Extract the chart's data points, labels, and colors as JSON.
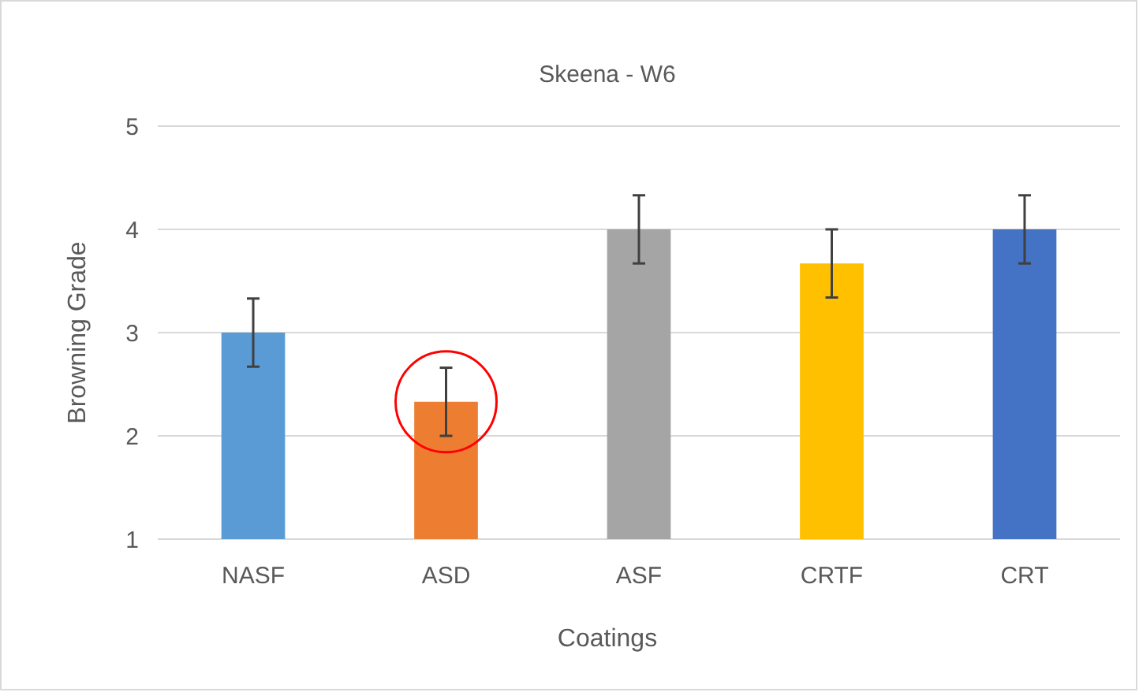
{
  "chart_data": {
    "type": "bar",
    "title": "Skeena - W6",
    "xlabel": "Coatings",
    "ylabel": "Browning Grade",
    "categories": [
      "NASF",
      "ASD",
      "ASF",
      "CRTF",
      "CRT"
    ],
    "values": [
      3,
      2.33,
      4,
      3.67,
      4
    ],
    "colors": [
      "#5b9bd5",
      "#ed7d31",
      "#a5a5a5",
      "#ffc000",
      "#4472c4"
    ],
    "errors": [
      0.33,
      0.33,
      0.33,
      0.33,
      0.33
    ],
    "ylim": [
      1,
      5
    ],
    "yticks": [
      1,
      2,
      3,
      4,
      5
    ],
    "grid": "y"
  }
}
